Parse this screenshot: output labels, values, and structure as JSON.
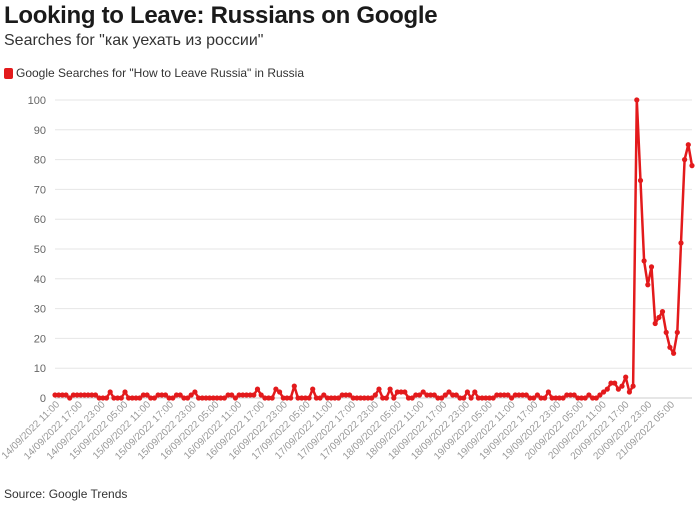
{
  "title": "Looking to Leave: Russians on Google",
  "subtitle": "Searches for \"как уехать из россии\"",
  "source": "Source: Google Trends",
  "colors": {
    "series": "#e31a1c",
    "grid": "#e6e6e6",
    "axis": "#cccccc"
  },
  "chart_data": {
    "type": "line",
    "title": "",
    "xlabel": "",
    "ylabel": "",
    "ylim": [
      0,
      100
    ],
    "y_ticks": [
      0,
      10,
      20,
      30,
      40,
      50,
      60,
      70,
      80,
      90,
      100
    ],
    "grid": "horizontal",
    "legend": "top-left",
    "x_tick_labels": [
      "14/09/2022 11:00",
      "14/09/2022 17:00",
      "14/09/2022 23:00",
      "15/09/2022 05:00",
      "15/09/2022 11:00",
      "15/09/2022 17:00",
      "15/09/2022 23:00",
      "16/09/2022 05:00",
      "16/09/2022 11:00",
      "16/09/2022 17:00",
      "16/09/2022 23:00",
      "17/09/2022 05:00",
      "17/09/2022 11:00",
      "17/09/2022 17:00",
      "17/09/2022 23:00",
      "18/09/2022 05:00",
      "18/09/2022 11:00",
      "18/09/2022 17:00",
      "18/09/2022 23:00",
      "19/09/2022 05:00",
      "19/09/2022 11:00",
      "19/09/2022 17:00",
      "19/09/2022 23:00",
      "20/09/2022 05:00",
      "20/09/2022 11:00",
      "20/09/2022 17:00",
      "20/09/2022 23:00",
      "21/09/2022 05:00"
    ],
    "series": [
      {
        "name": "Google Searches for \"How to Leave Russia\" in Russia",
        "values": [
          1,
          1,
          1,
          1,
          0,
          1,
          1,
          1,
          1,
          1,
          1,
          1,
          0,
          0,
          0,
          2,
          0,
          0,
          0,
          2,
          0,
          0,
          0,
          0,
          1,
          1,
          0,
          0,
          1,
          1,
          1,
          0,
          0,
          1,
          1,
          0,
          0,
          1,
          2,
          0,
          0,
          0,
          0,
          0,
          0,
          0,
          0,
          1,
          1,
          0,
          1,
          1,
          1,
          1,
          1,
          3,
          1,
          0,
          0,
          0,
          3,
          2,
          0,
          0,
          0,
          4,
          0,
          0,
          0,
          0,
          3,
          0,
          0,
          1,
          0,
          0,
          0,
          0,
          1,
          1,
          1,
          0,
          0,
          0,
          0,
          0,
          0,
          1,
          3,
          0,
          0,
          3,
          0,
          2,
          2,
          2,
          0,
          0,
          1,
          1,
          2,
          1,
          1,
          1,
          0,
          0,
          1,
          2,
          1,
          1,
          0,
          0,
          2,
          0,
          2,
          0,
          0,
          0,
          0,
          0,
          1,
          1,
          1,
          1,
          0,
          1,
          1,
          1,
          1,
          0,
          0,
          1,
          0,
          0,
          2,
          0,
          0,
          0,
          0,
          1,
          1,
          1,
          0,
          0,
          0,
          1,
          0,
          0,
          1,
          2,
          3,
          5,
          5,
          3,
          4,
          7,
          2,
          4,
          100,
          73,
          46,
          38,
          44,
          25,
          27,
          29,
          22,
          17,
          15,
          22,
          52,
          80,
          85,
          78
        ]
      }
    ]
  }
}
